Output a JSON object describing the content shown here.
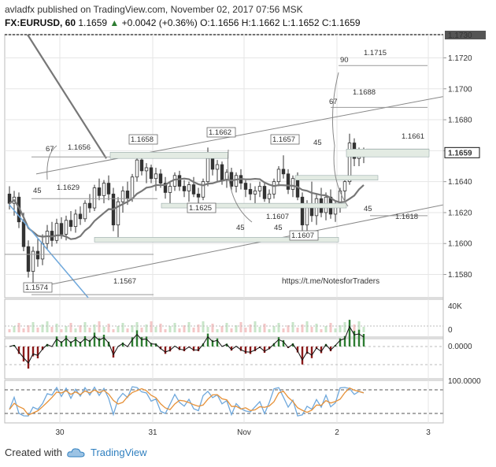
{
  "header": {
    "line1": "avladfx published on TradingView.com, November 02, 2017 07:56 MSK",
    "symbol": "FX:EURUSD, 60",
    "last": "1.1659",
    "change_arrow": "▲",
    "change": "+0.0042 (+0.36%)",
    "ohlc": "O:1.1656 H:1.1662 L:1.1652 C:1.1659"
  },
  "footer": {
    "created_with": "Created with",
    "brand": "TradingView",
    "logo_icon": "tradingview-cloud-icon"
  },
  "colors": {
    "up": "#2e7d32",
    "down": "#8b1a1a",
    "ma": "#777777",
    "blue": "#6fa8dc",
    "orange": "#e69138",
    "grid": "#e6e6e6"
  },
  "chart_data": [
    {
      "type": "candlestick",
      "title": "",
      "ylim": [
        1.1565,
        1.1735
      ],
      "y_ticks": [
        "1.1580",
        "1.1600",
        "1.1620",
        "1.1640",
        "1.1660",
        "1.1680",
        "1.1700",
        "1.1720"
      ],
      "top_label": "1.1730",
      "price_label": "1.1659",
      "x_ticks": [
        "30",
        "31",
        "Nov",
        "2",
        "3"
      ],
      "watermark": "https://t.me/NotesforTraders",
      "annotations": [
        "1.1715",
        "1.1688",
        "1.1661",
        "1.1618",
        "1.1656",
        "1.1629",
        "1.1567",
        "1.1574",
        "1.1658",
        "1.1662",
        "1.1657",
        "1.1625",
        "1.1607",
        "1.1607"
      ],
      "angles": [
        "90",
        "67",
        "45",
        "45",
        "45",
        "67",
        "45",
        "45"
      ],
      "candles": [
        [
          1.1632,
          1.1637,
          1.1622,
          1.1626
        ],
        [
          1.1626,
          1.1634,
          1.1618,
          1.163
        ],
        [
          1.163,
          1.1633,
          1.161,
          1.1614
        ],
        [
          1.1614,
          1.162,
          1.1595,
          1.1598
        ],
        [
          1.1598,
          1.1602,
          1.1578,
          1.1582
        ],
        [
          1.1582,
          1.1598,
          1.1574,
          1.1595
        ],
        [
          1.1595,
          1.1603,
          1.1585,
          1.159
        ],
        [
          1.159,
          1.1606,
          1.1586,
          1.16
        ],
        [
          1.16,
          1.1612,
          1.1596,
          1.1608
        ],
        [
          1.1608,
          1.1614,
          1.1598,
          1.1602
        ],
        [
          1.1602,
          1.1616,
          1.16,
          1.1613
        ],
        [
          1.1613,
          1.1617,
          1.1603,
          1.1606
        ],
        [
          1.1606,
          1.1618,
          1.1602,
          1.1615
        ],
        [
          1.1615,
          1.1621,
          1.1608,
          1.1611
        ],
        [
          1.1611,
          1.1622,
          1.1607,
          1.1619
        ],
        [
          1.1619,
          1.1624,
          1.1612,
          1.1616
        ],
        [
          1.1616,
          1.1628,
          1.1614,
          1.1626
        ],
        [
          1.1626,
          1.1632,
          1.162,
          1.1623
        ],
        [
          1.1623,
          1.1638,
          1.1621,
          1.1636
        ],
        [
          1.1636,
          1.1642,
          1.1628,
          1.1631
        ],
        [
          1.1631,
          1.1641,
          1.1626,
          1.1639
        ],
        [
          1.1639,
          1.1644,
          1.1628,
          1.1632
        ],
        [
          1.1632,
          1.1636,
          1.1608,
          1.1612
        ],
        [
          1.1612,
          1.163,
          1.1604,
          1.1627
        ],
        [
          1.1627,
          1.1637,
          1.162,
          1.1634
        ],
        [
          1.1634,
          1.164,
          1.1625,
          1.1629
        ],
        [
          1.1629,
          1.1645,
          1.1627,
          1.1643
        ],
        [
          1.1643,
          1.1658,
          1.164,
          1.1654
        ],
        [
          1.1654,
          1.1657,
          1.1644,
          1.1647
        ],
        [
          1.1647,
          1.1652,
          1.1639,
          1.1649
        ],
        [
          1.1649,
          1.1651,
          1.1639,
          1.1642
        ],
        [
          1.1642,
          1.1649,
          1.1634,
          1.1645
        ],
        [
          1.1645,
          1.1648,
          1.1636,
          1.1639
        ],
        [
          1.1639,
          1.1643,
          1.1629,
          1.1633
        ],
        [
          1.1633,
          1.164,
          1.1626,
          1.1637
        ],
        [
          1.1637,
          1.1646,
          1.1634,
          1.1644
        ],
        [
          1.1644,
          1.1647,
          1.1634,
          1.1637
        ],
        [
          1.1637,
          1.1641,
          1.163,
          1.1634
        ],
        [
          1.1634,
          1.164,
          1.1627,
          1.1638
        ],
        [
          1.1638,
          1.1643,
          1.163,
          1.1632
        ],
        [
          1.1632,
          1.1636,
          1.1625,
          1.163
        ],
        [
          1.163,
          1.1642,
          1.1628,
          1.164
        ],
        [
          1.164,
          1.1662,
          1.1637,
          1.1655
        ],
        [
          1.1655,
          1.1658,
          1.1644,
          1.1648
        ],
        [
          1.1648,
          1.1654,
          1.164,
          1.1651
        ],
        [
          1.1651,
          1.1653,
          1.1638,
          1.1641
        ],
        [
          1.1641,
          1.1648,
          1.1636,
          1.1646
        ],
        [
          1.1646,
          1.1649,
          1.1634,
          1.1637
        ],
        [
          1.1637,
          1.1646,
          1.1633,
          1.1644
        ],
        [
          1.1644,
          1.1648,
          1.1635,
          1.1639
        ],
        [
          1.1639,
          1.1641,
          1.163,
          1.1635
        ],
        [
          1.1635,
          1.1639,
          1.1628,
          1.1632
        ],
        [
          1.1632,
          1.1637,
          1.1626,
          1.1634
        ],
        [
          1.1634,
          1.164,
          1.163,
          1.1637
        ],
        [
          1.1637,
          1.164,
          1.1627,
          1.1629
        ],
        [
          1.1629,
          1.1635,
          1.1624,
          1.1632
        ],
        [
          1.1632,
          1.1642,
          1.1629,
          1.164
        ],
        [
          1.164,
          1.165,
          1.1637,
          1.1648
        ],
        [
          1.1648,
          1.1657,
          1.1642,
          1.1645
        ],
        [
          1.1645,
          1.1648,
          1.1632,
          1.1635
        ],
        [
          1.1635,
          1.1644,
          1.163,
          1.1642
        ],
        [
          1.1642,
          1.1646,
          1.1628,
          1.163
        ],
        [
          1.163,
          1.1633,
          1.1607,
          1.1612
        ],
        [
          1.1612,
          1.1628,
          1.1608,
          1.1625
        ],
        [
          1.1625,
          1.164,
          1.1614,
          1.1618
        ],
        [
          1.1618,
          1.1632,
          1.1612,
          1.1629
        ],
        [
          1.1629,
          1.1636,
          1.1617,
          1.162
        ],
        [
          1.162,
          1.1633,
          1.1615,
          1.163
        ],
        [
          1.163,
          1.1635,
          1.1616,
          1.1619
        ],
        [
          1.1619,
          1.1628,
          1.1614,
          1.1625
        ],
        [
          1.1625,
          1.1636,
          1.162,
          1.1634
        ],
        [
          1.1634,
          1.1642,
          1.1628,
          1.164
        ],
        [
          1.164,
          1.1671,
          1.1638,
          1.1665
        ],
        [
          1.1665,
          1.1668,
          1.165,
          1.1655
        ],
        [
          1.1655,
          1.1662,
          1.165,
          1.166
        ],
        [
          1.1656,
          1.1662,
          1.1652,
          1.1659
        ]
      ]
    },
    {
      "type": "bar",
      "title": "",
      "ylim": [
        0,
        40000
      ],
      "y_ticks": [
        "0",
        "40K"
      ]
    },
    {
      "type": "area",
      "title": "",
      "y_ticks": [
        "0.0000"
      ]
    },
    {
      "type": "line",
      "title": "",
      "y_ticks": [
        "100.0000"
      ],
      "series": [
        {
          "color": "blue"
        },
        {
          "color": "orange"
        }
      ]
    }
  ]
}
